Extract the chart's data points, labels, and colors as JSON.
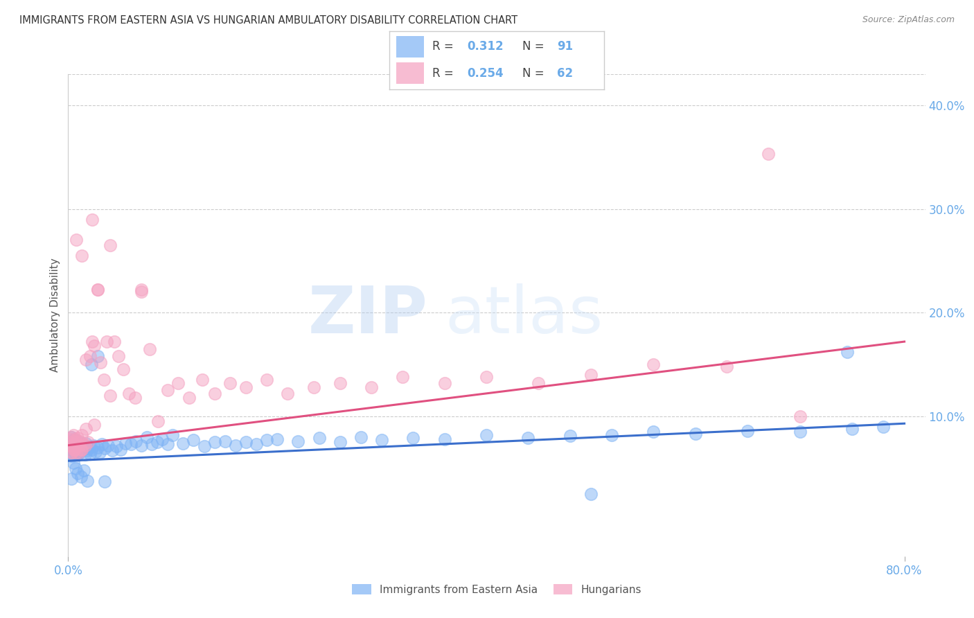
{
  "title": "IMMIGRANTS FROM EASTERN ASIA VS HUNGARIAN AMBULATORY DISABILITY CORRELATION CHART",
  "source": "Source: ZipAtlas.com",
  "ylabel": "Ambulatory Disability",
  "legend_blue_r": "0.312",
  "legend_blue_n": "91",
  "legend_pink_r": "0.254",
  "legend_pink_n": "62",
  "legend_label_blue": "Immigrants from Eastern Asia",
  "legend_label_pink": "Hungarians",
  "xlim": [
    0.0,
    0.82
  ],
  "ylim": [
    -0.035,
    0.43
  ],
  "blue_scatter_color": "#7EB3F5",
  "pink_scatter_color": "#F5A0C0",
  "blue_line_color": "#3B6FCC",
  "pink_line_color": "#E05080",
  "title_color": "#333333",
  "axis_tick_color": "#6aaae8",
  "grid_color": "#cccccc",
  "watermark_zip": "ZIP",
  "watermark_atlas": "atlas",
  "blue_scatter_x": [
    0.001,
    0.002,
    0.002,
    0.003,
    0.003,
    0.004,
    0.004,
    0.005,
    0.005,
    0.006,
    0.006,
    0.007,
    0.007,
    0.008,
    0.008,
    0.009,
    0.009,
    0.01,
    0.01,
    0.011,
    0.011,
    0.012,
    0.013,
    0.014,
    0.015,
    0.016,
    0.017,
    0.018,
    0.019,
    0.02,
    0.021,
    0.022,
    0.024,
    0.026,
    0.028,
    0.03,
    0.032,
    0.035,
    0.038,
    0.042,
    0.046,
    0.05,
    0.055,
    0.06,
    0.065,
    0.07,
    0.075,
    0.08,
    0.085,
    0.09,
    0.095,
    0.1,
    0.11,
    0.12,
    0.13,
    0.14,
    0.15,
    0.16,
    0.17,
    0.18,
    0.19,
    0.2,
    0.22,
    0.24,
    0.26,
    0.28,
    0.3,
    0.33,
    0.36,
    0.4,
    0.44,
    0.48,
    0.52,
    0.56,
    0.6,
    0.65,
    0.7,
    0.75,
    0.78,
    0.003,
    0.005,
    0.007,
    0.009,
    0.012,
    0.015,
    0.018,
    0.022,
    0.028,
    0.035,
    0.745,
    0.5
  ],
  "blue_scatter_y": [
    0.075,
    0.072,
    0.065,
    0.068,
    0.08,
    0.073,
    0.062,
    0.07,
    0.075,
    0.068,
    0.078,
    0.064,
    0.073,
    0.066,
    0.072,
    0.063,
    0.068,
    0.075,
    0.066,
    0.072,
    0.065,
    0.069,
    0.073,
    0.068,
    0.072,
    0.063,
    0.074,
    0.067,
    0.069,
    0.071,
    0.064,
    0.068,
    0.072,
    0.066,
    0.07,
    0.065,
    0.073,
    0.069,
    0.072,
    0.067,
    0.071,
    0.068,
    0.074,
    0.073,
    0.076,
    0.072,
    0.08,
    0.073,
    0.075,
    0.078,
    0.073,
    0.082,
    0.074,
    0.077,
    0.071,
    0.075,
    0.076,
    0.072,
    0.075,
    0.073,
    0.077,
    0.078,
    0.076,
    0.079,
    0.075,
    0.08,
    0.077,
    0.079,
    0.078,
    0.082,
    0.079,
    0.081,
    0.082,
    0.085,
    0.083,
    0.086,
    0.085,
    0.088,
    0.09,
    0.04,
    0.055,
    0.05,
    0.045,
    0.042,
    0.048,
    0.038,
    0.15,
    0.158,
    0.037,
    0.162,
    0.025
  ],
  "pink_scatter_x": [
    0.001,
    0.002,
    0.003,
    0.004,
    0.005,
    0.006,
    0.007,
    0.008,
    0.009,
    0.01,
    0.011,
    0.012,
    0.013,
    0.015,
    0.017,
    0.019,
    0.021,
    0.023,
    0.025,
    0.028,
    0.031,
    0.034,
    0.037,
    0.04,
    0.044,
    0.048,
    0.053,
    0.058,
    0.064,
    0.07,
    0.078,
    0.086,
    0.095,
    0.105,
    0.116,
    0.128,
    0.14,
    0.155,
    0.17,
    0.19,
    0.21,
    0.235,
    0.26,
    0.29,
    0.32,
    0.36,
    0.4,
    0.45,
    0.5,
    0.56,
    0.63,
    0.7,
    0.004,
    0.006,
    0.008,
    0.01,
    0.013,
    0.016,
    0.002,
    0.003,
    0.005,
    0.007
  ],
  "pink_scatter_y": [
    0.075,
    0.078,
    0.08,
    0.072,
    0.082,
    0.068,
    0.075,
    0.065,
    0.079,
    0.072,
    0.076,
    0.068,
    0.082,
    0.073,
    0.088,
    0.075,
    0.158,
    0.172,
    0.092,
    0.222,
    0.152,
    0.135,
    0.172,
    0.12,
    0.172,
    0.158,
    0.145,
    0.122,
    0.118,
    0.222,
    0.165,
    0.095,
    0.125,
    0.132,
    0.118,
    0.135,
    0.122,
    0.132,
    0.128,
    0.135,
    0.122,
    0.128,
    0.132,
    0.128,
    0.138,
    0.132,
    0.138,
    0.132,
    0.14,
    0.15,
    0.148,
    0.1,
    0.065,
    0.068,
    0.072,
    0.065,
    0.068,
    0.072,
    0.072,
    0.065,
    0.07,
    0.078
  ],
  "blue_line_x": [
    0.0,
    0.8
  ],
  "blue_line_y_start": 0.057,
  "blue_line_y_end": 0.093,
  "pink_line_x": [
    0.0,
    0.8
  ],
  "pink_line_y_start": 0.072,
  "pink_line_y_end": 0.172,
  "pink_outlier_x": [
    0.008,
    0.013,
    0.023,
    0.028,
    0.017,
    0.025,
    0.04,
    0.07,
    0.67
  ],
  "pink_outlier_y": [
    0.27,
    0.255,
    0.29,
    0.222,
    0.155,
    0.168,
    0.265,
    0.22,
    0.353
  ]
}
